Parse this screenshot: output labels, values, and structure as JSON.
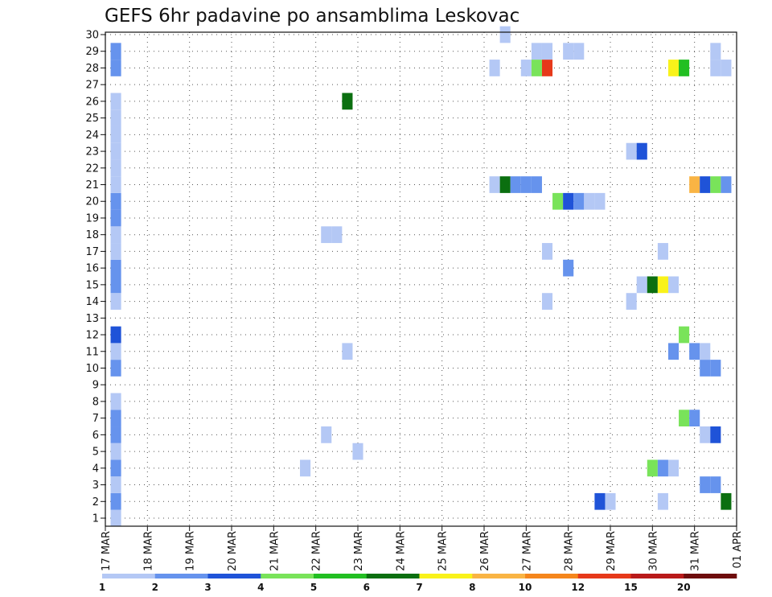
{
  "chart_data": {
    "type": "heatmap",
    "title": "GEFS 6hr padavine po ansamblima Leskovac",
    "x_tick_labels": [
      "17 MAR",
      "18 MAR",
      "19 MAR",
      "20 MAR",
      "21 MAR",
      "22 MAR",
      "23 MAR",
      "24 MAR",
      "25 MAR",
      "26 MAR",
      "27 MAR",
      "28 MAR",
      "29 MAR",
      "30 MAR",
      "31 MAR",
      "01 APR"
    ],
    "y_tick_labels": [
      "1",
      "2",
      "3",
      "4",
      "5",
      "6",
      "7",
      "8",
      "9",
      "10",
      "11",
      "12",
      "13",
      "14",
      "15",
      "16",
      "17",
      "18",
      "19",
      "20",
      "21",
      "22",
      "23",
      "24",
      "25",
      "26",
      "27",
      "28",
      "29",
      "30"
    ],
    "ylim": [
      1,
      30
    ],
    "x_range_days": [
      0,
      15
    ],
    "grid": true,
    "color_scale": {
      "breaks": [
        "1",
        "2",
        "3",
        "4",
        "5",
        "6",
        "7",
        "8",
        "10",
        "12",
        "15",
        "20"
      ],
      "colors": [
        "#b4c8f5",
        "#6693ed",
        "#1f53d8",
        "#79e35a",
        "#22bf22",
        "#0b6f10",
        "#f9f21a",
        "#f9b444",
        "#f5861c",
        "#e6391a",
        "#b91a1a",
        "#6e0d0d"
      ]
    },
    "cells": [
      {
        "m": 1,
        "t": 0.25,
        "v": 1
      },
      {
        "m": 2,
        "t": 0.25,
        "v": 2
      },
      {
        "m": 3,
        "t": 0.25,
        "v": 1
      },
      {
        "m": 4,
        "t": 0.25,
        "v": 2
      },
      {
        "m": 5,
        "t": 0.25,
        "v": 1
      },
      {
        "m": 6,
        "t": 0.25,
        "v": 2
      },
      {
        "m": 7,
        "t": 0.25,
        "v": 2
      },
      {
        "m": 8,
        "t": 0.25,
        "v": 1
      },
      {
        "m": 10,
        "t": 0.25,
        "v": 2
      },
      {
        "m": 11,
        "t": 0.25,
        "v": 1
      },
      {
        "m": 12,
        "t": 0.25,
        "v": 3
      },
      {
        "m": 14,
        "t": 0.25,
        "v": 1
      },
      {
        "m": 15,
        "t": 0.25,
        "v": 2
      },
      {
        "m": 16,
        "t": 0.25,
        "v": 2
      },
      {
        "m": 17,
        "t": 0.25,
        "v": 1
      },
      {
        "m": 18,
        "t": 0.25,
        "v": 1
      },
      {
        "m": 19,
        "t": 0.25,
        "v": 2
      },
      {
        "m": 20,
        "t": 0.25,
        "v": 2
      },
      {
        "m": 21,
        "t": 0.25,
        "v": 1
      },
      {
        "m": 22,
        "t": 0.25,
        "v": 1
      },
      {
        "m": 23,
        "t": 0.25,
        "v": 1
      },
      {
        "m": 24,
        "t": 0.25,
        "v": 1
      },
      {
        "m": 25,
        "t": 0.25,
        "v": 1
      },
      {
        "m": 26,
        "t": 0.25,
        "v": 1
      },
      {
        "m": 28,
        "t": 0.25,
        "v": 2
      },
      {
        "m": 29,
        "t": 0.25,
        "v": 2
      },
      {
        "m": 4,
        "t": 4.75,
        "v": 1
      },
      {
        "m": 6,
        "t": 5.25,
        "v": 1
      },
      {
        "m": 18,
        "t": 5.25,
        "v": 1
      },
      {
        "m": 18,
        "t": 5.5,
        "v": 1
      },
      {
        "m": 26,
        "t": 5.75,
        "v": 6
      },
      {
        "m": 11,
        "t": 5.75,
        "v": 1
      },
      {
        "m": 5,
        "t": 6.0,
        "v": 1
      },
      {
        "m": 28,
        "t": 9.25,
        "v": 1
      },
      {
        "m": 21,
        "t": 9.25,
        "v": 1
      },
      {
        "m": 30,
        "t": 9.5,
        "v": 1
      },
      {
        "m": 21,
        "t": 9.5,
        "v": 6
      },
      {
        "m": 21,
        "t": 9.75,
        "v": 2
      },
      {
        "m": 28,
        "t": 10.0,
        "v": 1
      },
      {
        "m": 21,
        "t": 10.0,
        "v": 2
      },
      {
        "m": 28,
        "t": 10.25,
        "v": 4
      },
      {
        "m": 29,
        "t": 10.25,
        "v": 1
      },
      {
        "m": 21,
        "t": 10.25,
        "v": 2
      },
      {
        "m": 28,
        "t": 10.5,
        "v": 12
      },
      {
        "m": 29,
        "t": 10.5,
        "v": 1
      },
      {
        "m": 14,
        "t": 10.5,
        "v": 1
      },
      {
        "m": 17,
        "t": 10.5,
        "v": 1
      },
      {
        "m": 20,
        "t": 10.75,
        "v": 4
      },
      {
        "m": 20,
        "t": 11.0,
        "v": 3
      },
      {
        "m": 29,
        "t": 11.0,
        "v": 1
      },
      {
        "m": 16,
        "t": 11.0,
        "v": 2
      },
      {
        "m": 29,
        "t": 11.25,
        "v": 1
      },
      {
        "m": 20,
        "t": 11.25,
        "v": 2
      },
      {
        "m": 20,
        "t": 11.5,
        "v": 1
      },
      {
        "m": 20,
        "t": 11.75,
        "v": 1
      },
      {
        "m": 2,
        "t": 11.75,
        "v": 3
      },
      {
        "m": 2,
        "t": 12.0,
        "v": 1
      },
      {
        "m": 14,
        "t": 12.5,
        "v": 1
      },
      {
        "m": 23,
        "t": 12.5,
        "v": 1
      },
      {
        "m": 23,
        "t": 12.75,
        "v": 3
      },
      {
        "m": 15,
        "t": 12.75,
        "v": 1
      },
      {
        "m": 15,
        "t": 13.0,
        "v": 6
      },
      {
        "m": 4,
        "t": 13.0,
        "v": 4
      },
      {
        "m": 15,
        "t": 13.25,
        "v": 7
      },
      {
        "m": 17,
        "t": 13.25,
        "v": 1
      },
      {
        "m": 4,
        "t": 13.25,
        "v": 2
      },
      {
        "m": 2,
        "t": 13.25,
        "v": 1
      },
      {
        "m": 15,
        "t": 13.5,
        "v": 1
      },
      {
        "m": 4,
        "t": 13.5,
        "v": 1
      },
      {
        "m": 28,
        "t": 13.5,
        "v": 7
      },
      {
        "m": 11,
        "t": 13.5,
        "v": 2
      },
      {
        "m": 28,
        "t": 13.75,
        "v": 5
      },
      {
        "m": 12,
        "t": 13.75,
        "v": 4
      },
      {
        "m": 7,
        "t": 13.75,
        "v": 4
      },
      {
        "m": 21,
        "t": 14.0,
        "v": 9
      },
      {
        "m": 11,
        "t": 14.0,
        "v": 2
      },
      {
        "m": 7,
        "t": 14.0,
        "v": 2
      },
      {
        "m": 21,
        "t": 14.25,
        "v": 3
      },
      {
        "m": 11,
        "t": 14.25,
        "v": 1
      },
      {
        "m": 10,
        "t": 14.25,
        "v": 2
      },
      {
        "m": 6,
        "t": 14.25,
        "v": 1
      },
      {
        "m": 3,
        "t": 14.25,
        "v": 2
      },
      {
        "m": 29,
        "t": 14.5,
        "v": 1
      },
      {
        "m": 28,
        "t": 14.5,
        "v": 1
      },
      {
        "m": 21,
        "t": 14.5,
        "v": 4
      },
      {
        "m": 10,
        "t": 14.5,
        "v": 2
      },
      {
        "m": 6,
        "t": 14.5,
        "v": 3
      },
      {
        "m": 3,
        "t": 14.5,
        "v": 2
      },
      {
        "m": 28,
        "t": 14.75,
        "v": 1
      },
      {
        "m": 21,
        "t": 14.75,
        "v": 2
      },
      {
        "m": 2,
        "t": 14.75,
        "v": 6
      }
    ]
  }
}
